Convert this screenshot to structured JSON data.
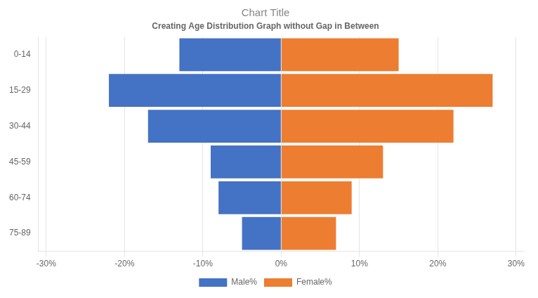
{
  "chart_data": {
    "type": "bar",
    "orientation": "horizontal",
    "title": "Chart Title",
    "subtitle": "Creating Age Distribution Graph without Gap in Between",
    "categories": [
      "75-89",
      "60-74",
      "45-59",
      "30-44",
      "15-29",
      "0-14"
    ],
    "series": [
      {
        "name": "Male%",
        "color": "#4472C4",
        "values": [
          -0.05,
          -0.08,
          -0.09,
          -0.17,
          -0.22,
          -0.13
        ]
      },
      {
        "name": "Female%",
        "color": "#ED7D31",
        "values": [
          0.07,
          0.09,
          0.13,
          0.22,
          0.27,
          0.15
        ]
      }
    ],
    "xlim": [
      -0.31,
      0.31
    ],
    "xticks": [
      {
        "value": -0.3,
        "label": "-30%"
      },
      {
        "value": -0.2,
        "label": "-20%"
      },
      {
        "value": -0.1,
        "label": "-10%"
      },
      {
        "value": 0,
        "label": "0%"
      },
      {
        "value": 0.1,
        "label": "10%"
      },
      {
        "value": 0.2,
        "label": "20%"
      },
      {
        "value": 0.3,
        "label": "30%"
      }
    ],
    "grid": true,
    "legend": "bottom"
  }
}
